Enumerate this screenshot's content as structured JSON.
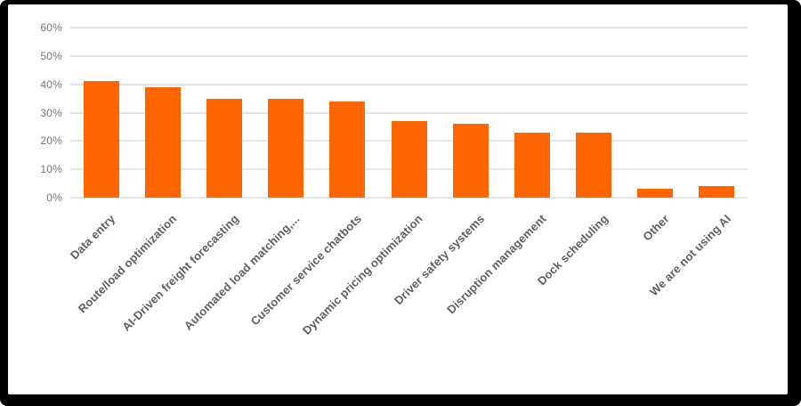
{
  "chart_data": {
    "type": "bar",
    "categories": [
      "Data entry",
      "Route/load optimization",
      "AI-Driven freight forecasting",
      "Automated load matching,...",
      "Customer service chatbots",
      "Dynamic pricing optimization",
      "Driver safety systems",
      "Disruption management",
      "Dock scheduling",
      "Other",
      "We are not using AI"
    ],
    "values": [
      41,
      39,
      35,
      35,
      34,
      27,
      26,
      23,
      23,
      3,
      4
    ],
    "unit": "%",
    "ylim": [
      0,
      60
    ],
    "yticks": [
      0,
      10,
      20,
      30,
      40,
      50,
      60
    ],
    "ytick_labels": [
      "0%",
      "10%",
      "20%",
      "30%",
      "40%",
      "50%",
      "60%"
    ],
    "grid": true,
    "legend_position": "none",
    "xlabel": "",
    "ylabel": "",
    "colors": {
      "bar": "#ff6600",
      "gridline": "#e4e4e4",
      "ytick_label": "#757575",
      "category_label": "#5f5f5f",
      "plot_background": "#ffffff",
      "frame": "#000000"
    }
  }
}
